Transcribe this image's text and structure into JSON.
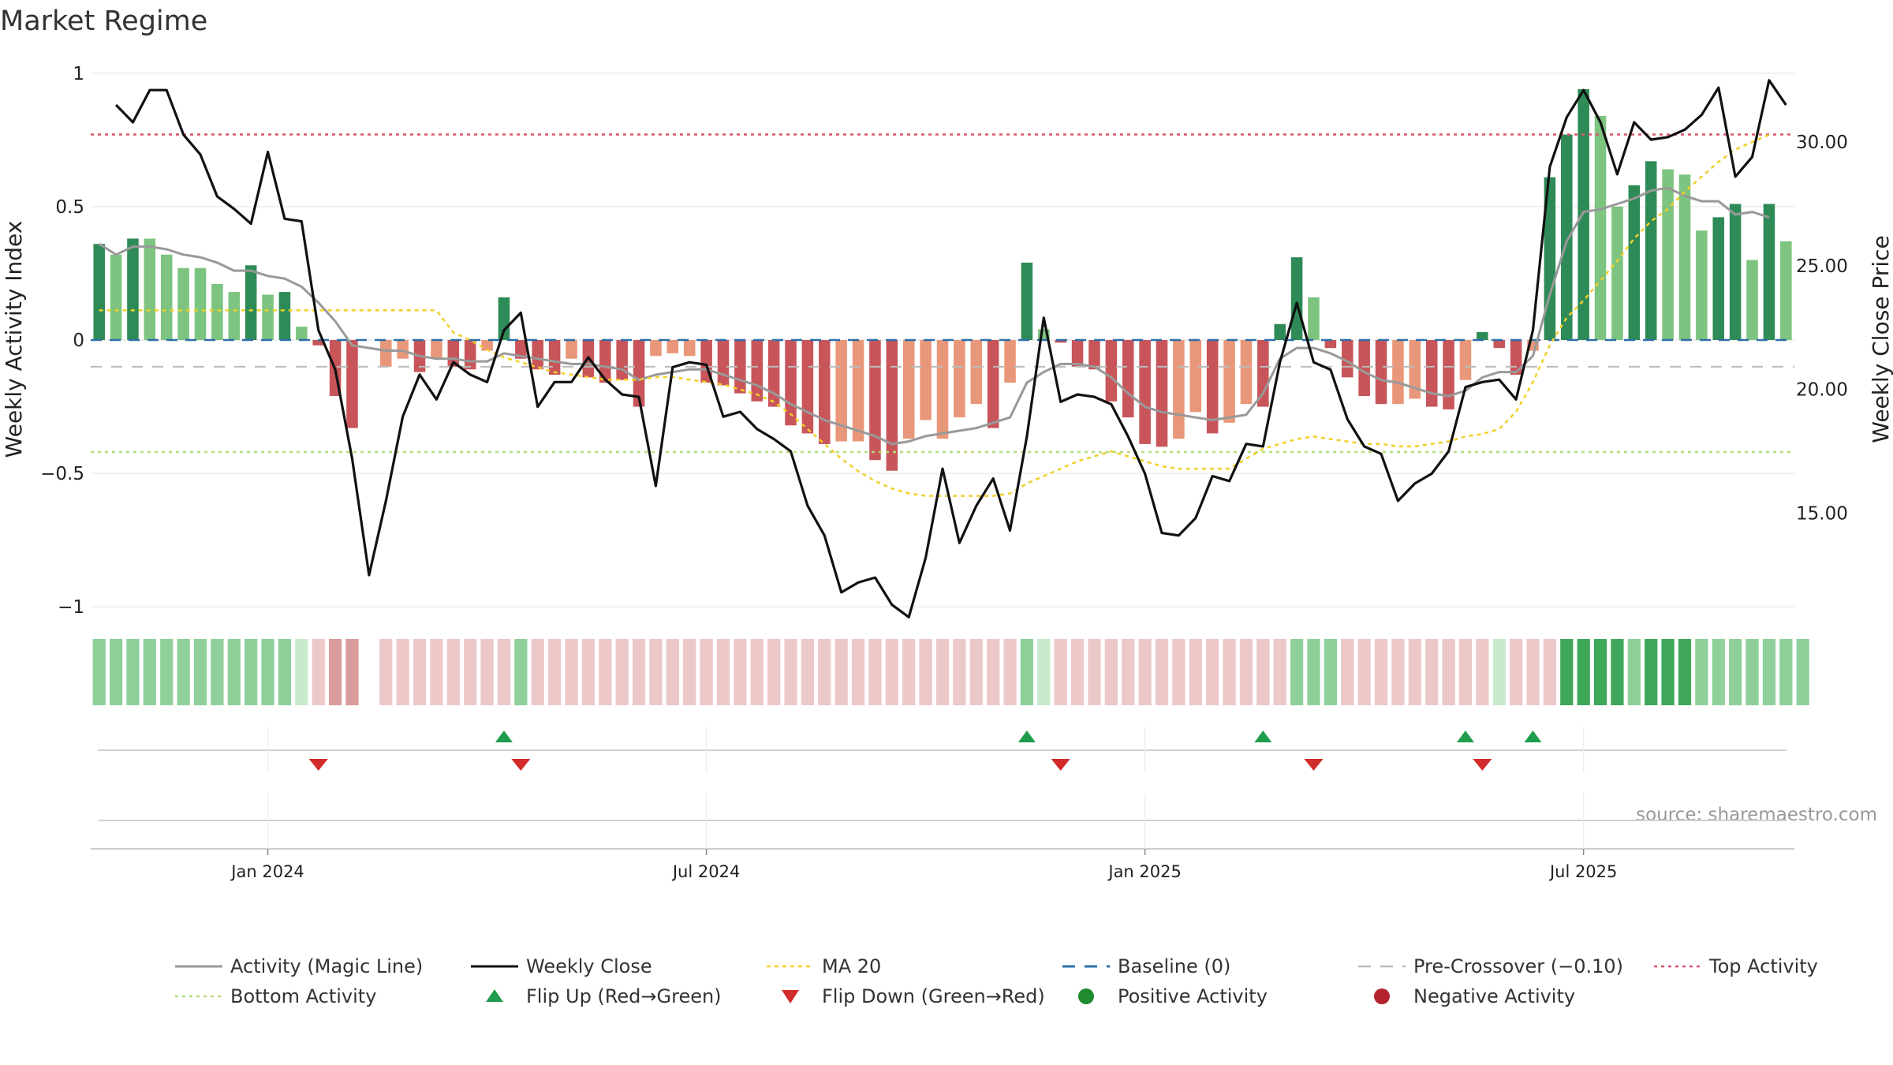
{
  "chart_data": {
    "type": "bar",
    "title": "Market Regime",
    "source": "source: sharemaestro.com",
    "ylabel_left": "Weekly Activity Index",
    "ylabel_right": "Weekly Close Price",
    "ylim_left": [
      -1.02,
      1.02
    ],
    "ylim_right": [
      11.0,
      33.0
    ],
    "yticks_left": [
      1,
      0.5,
      0,
      -0.5,
      -1
    ],
    "yticks_left_labels": [
      "1",
      "0.5",
      "0",
      "−0.5",
      "−1"
    ],
    "yticks_right": [
      30,
      25,
      20,
      15
    ],
    "yticks_right_labels": [
      "30.00",
      "25.00",
      "20.00",
      "15.00"
    ],
    "xticks": [
      {
        "label": "Jan 2024",
        "index": 10
      },
      {
        "label": "Jul 2024",
        "index": 36
      },
      {
        "label": "Jan 2025",
        "index": 62
      },
      {
        "label": "Jul 2025",
        "index": 88
      }
    ],
    "thresholds": {
      "top": 0.77,
      "bottom": -0.42,
      "pre_crossover": -0.1,
      "baseline": 0
    },
    "colors": {
      "pos_strong": "#2e8b57",
      "pos_light": "#7cc47f",
      "neg_strong": "#c8555a",
      "neg_light": "#e9977a",
      "close": "#111111",
      "magic": "#999999",
      "ma": "#f0d028",
      "top": "#d9546a",
      "bottom": "#b6dd7a",
      "pre": "#bbbbbb",
      "base": "#2f6fa8",
      "flip_up": "#1f9d4c",
      "flip_down": "#d22b2b"
    },
    "series": [
      {
        "name": "Activity",
        "values": [
          0.36,
          0.32,
          0.38,
          0.38,
          0.32,
          0.27,
          0.27,
          0.21,
          0.18,
          0.28,
          0.17,
          0.18,
          0.05,
          -0.02,
          -0.21,
          -0.33,
          0,
          -0.1,
          -0.07,
          -0.12,
          -0.07,
          -0.1,
          -0.11,
          -0.04,
          0.16,
          -0.07,
          -0.11,
          -0.13,
          -0.07,
          -0.14,
          -0.16,
          -0.15,
          -0.25,
          -0.06,
          -0.05,
          -0.06,
          -0.16,
          -0.17,
          -0.2,
          -0.23,
          -0.25,
          -0.32,
          -0.35,
          -0.39,
          -0.38,
          -0.38,
          -0.45,
          -0.49,
          -0.37,
          -0.3,
          -0.37,
          -0.29,
          -0.24,
          -0.33,
          -0.16,
          0.29,
          0.04,
          -0.01,
          -0.1,
          -0.11,
          -0.23,
          -0.29,
          -0.39,
          -0.4,
          -0.37,
          -0.27,
          -0.35,
          -0.31,
          -0.24,
          -0.25,
          0.06,
          0.31,
          0.16,
          -0.03,
          -0.14,
          -0.21,
          -0.24,
          -0.24,
          -0.22,
          -0.25,
          -0.26,
          -0.15,
          0.03,
          -0.03,
          -0.13,
          -0.04,
          0.61,
          0.77,
          0.94,
          0.84,
          0.5,
          0.58,
          0.67,
          0.64,
          0.62,
          0.41,
          0.46,
          0.51,
          0.3,
          0.51,
          0.37
        ],
        "colors": [
          "S",
          "L",
          "S",
          "L",
          "L",
          "L",
          "L",
          "L",
          "L",
          "S",
          "L",
          "S",
          "L",
          "S",
          "S",
          "S",
          "N",
          "L",
          "L",
          "S",
          "L",
          "S",
          "S",
          "L",
          "S",
          "S",
          "S",
          "S",
          "L",
          "S",
          "S",
          "S",
          "S",
          "L",
          "L",
          "L",
          "S",
          "S",
          "S",
          "S",
          "S",
          "S",
          "S",
          "S",
          "L",
          "L",
          "S",
          "S",
          "L",
          "L",
          "L",
          "L",
          "L",
          "S",
          "L",
          "S",
          "L",
          "S",
          "S",
          "S",
          "S",
          "S",
          "S",
          "S",
          "L",
          "L",
          "S",
          "L",
          "L",
          "S",
          "S",
          "S",
          "L",
          "S",
          "S",
          "S",
          "S",
          "L",
          "L",
          "S",
          "S",
          "L",
          "S",
          "S",
          "S",
          "L",
          "S",
          "S",
          "S",
          "L",
          "L",
          "S",
          "S",
          "L",
          "L",
          "L",
          "S",
          "S",
          "L",
          "S",
          "L"
        ]
      },
      {
        "name": "Weekly Close",
        "values": [
          31.5,
          30.8,
          32.1,
          32.1,
          30.3,
          29.5,
          27.8,
          27.3,
          26.7,
          29.6,
          26.9,
          26.8,
          22.4,
          20.8,
          17.2,
          12.5,
          15.5,
          18.9,
          20.6,
          19.6,
          21.1,
          20.6,
          20.3,
          22.4,
          23.1,
          19.3,
          20.3,
          20.3,
          21.3,
          20.4,
          19.8,
          19.7,
          16.1,
          20.9,
          21.1,
          21.0,
          18.9,
          19.1,
          18.4,
          18.0,
          17.5,
          15.3,
          14.1,
          11.8,
          12.2,
          12.4,
          11.3,
          10.8,
          13.2,
          16.8,
          13.8,
          15.3,
          16.4,
          14.3,
          18.1,
          22.9,
          19.5,
          19.8,
          19.7,
          19.4,
          18.1,
          16.6,
          14.2,
          14.1,
          14.8,
          16.5,
          16.3,
          17.8,
          17.7,
          21.1,
          23.5,
          21.1,
          20.8,
          18.8,
          17.7,
          17.4,
          15.5,
          16.2,
          16.6,
          17.5,
          20.1,
          20.3,
          20.4,
          19.6,
          22.4,
          29.0,
          31.0,
          32.1,
          30.8,
          28.7,
          30.8,
          30.1,
          30.2,
          30.5,
          31.1,
          32.2,
          28.6,
          29.4,
          32.5,
          31.5
        ],
        "start_index": 1
      },
      {
        "name": "Activity (Magic Line)",
        "values": [
          0.36,
          0.32,
          0.35,
          0.35,
          0.34,
          0.32,
          0.31,
          0.29,
          0.26,
          0.26,
          0.24,
          0.23,
          0.2,
          0.14,
          0.07,
          -0.02,
          -0.03,
          -0.04,
          -0.04,
          -0.06,
          -0.07,
          -0.07,
          -0.08,
          -0.08,
          -0.05,
          -0.06,
          -0.07,
          -0.08,
          -0.09,
          -0.09,
          -0.1,
          -0.11,
          -0.15,
          -0.13,
          -0.12,
          -0.11,
          -0.11,
          -0.13,
          -0.15,
          -0.17,
          -0.2,
          -0.24,
          -0.27,
          -0.3,
          -0.32,
          -0.34,
          -0.36,
          -0.39,
          -0.38,
          -0.36,
          -0.35,
          -0.34,
          -0.33,
          -0.31,
          -0.29,
          -0.16,
          -0.12,
          -0.09,
          -0.09,
          -0.1,
          -0.14,
          -0.2,
          -0.25,
          -0.27,
          -0.28,
          -0.29,
          -0.3,
          -0.29,
          -0.28,
          -0.2,
          -0.07,
          -0.03,
          -0.03,
          -0.05,
          -0.08,
          -0.12,
          -0.15,
          -0.16,
          -0.18,
          -0.2,
          -0.21,
          -0.19,
          -0.14,
          -0.12,
          -0.12,
          -0.06,
          0.17,
          0.37,
          0.48,
          0.49,
          0.51,
          0.53,
          0.56,
          0.57,
          0.54,
          0.52,
          0.52,
          0.47,
          0.48,
          0.46
        ]
      },
      {
        "name": "MA 20",
        "values": [
          23.2,
          23.2,
          23.2,
          23.2,
          23.2,
          23.2,
          23.2,
          23.2,
          23.2,
          23.2,
          23.2,
          23.2,
          23.2,
          23.2,
          23.2,
          23.2,
          23.2,
          23.2,
          23.2,
          23.2,
          23.2,
          22.3,
          22.0,
          21.6,
          21.3,
          21.1,
          20.9,
          20.7,
          20.6,
          20.5,
          20.4,
          20.4,
          20.4,
          20.5,
          20.5,
          20.4,
          20.3,
          20.2,
          20.0,
          19.8,
          19.5,
          19.0,
          18.4,
          17.8,
          17.2,
          16.7,
          16.3,
          16.0,
          15.8,
          15.7,
          15.7,
          15.7,
          15.7,
          15.7,
          15.8,
          16.2,
          16.5,
          16.8,
          17.1,
          17.3,
          17.5,
          17.3,
          17.1,
          16.9,
          16.8,
          16.8,
          16.8,
          16.8,
          17.2,
          17.6,
          17.8,
          18.0,
          18.1,
          18.0,
          17.9,
          17.8,
          17.8,
          17.7,
          17.7,
          17.8,
          17.9,
          18.1,
          18.2,
          18.4,
          19.1,
          20.3,
          21.8,
          22.9,
          23.6,
          24.4,
          25.2,
          26.1,
          26.8,
          27.3,
          28.0,
          28.6,
          29.2,
          29.7,
          30.0,
          30.3
        ]
      }
    ],
    "regime_strip": [
      2,
      2,
      2,
      2,
      2,
      2,
      2,
      2,
      2,
      2,
      2,
      2,
      1,
      -1,
      -2,
      -2,
      0,
      -1,
      -1,
      -1,
      -1,
      -1,
      -1,
      -1,
      -1,
      2,
      -1,
      -1,
      -1,
      -1,
      -1,
      -1,
      -1,
      -1,
      -1,
      -1,
      -1,
      -1,
      -1,
      -1,
      -1,
      -1,
      -1,
      -1,
      -1,
      -1,
      -1,
      -1,
      -1,
      -1,
      -1,
      -1,
      -1,
      -1,
      -1,
      2,
      1,
      -1,
      -1,
      -1,
      -1,
      -1,
      -1,
      -1,
      -1,
      -1,
      -1,
      -1,
      -1,
      -1,
      -1,
      2,
      2,
      2,
      -1,
      -1,
      -1,
      -1,
      -1,
      -1,
      -1,
      -1,
      -1,
      1,
      -1,
      -1,
      -1,
      3,
      3,
      3,
      3,
      2,
      3,
      3,
      3,
      2,
      2,
      2,
      2,
      2,
      2,
      2
    ],
    "flip_up": [
      24,
      55,
      69,
      81,
      85
    ],
    "flip_down": [
      13,
      25,
      57,
      72,
      82
    ],
    "legend": [
      {
        "label": "Activity (Magic Line)",
        "style": "magic"
      },
      {
        "label": "Weekly Close",
        "style": "close"
      },
      {
        "label": "MA 20",
        "style": "ma"
      },
      {
        "label": "Baseline (0)",
        "style": "base"
      },
      {
        "label": "Pre-Crossover (−0.10)",
        "style": "pre"
      },
      {
        "label": "Top Activity",
        "style": "top"
      },
      {
        "label": "Bottom Activity",
        "style": "bottom"
      },
      {
        "label": "Flip Up (Red→Green)",
        "style": "up"
      },
      {
        "label": "Flip Down (Green→Red)",
        "style": "down"
      },
      {
        "label": "Positive Activity",
        "style": "pos"
      },
      {
        "label": "Negative Activity",
        "style": "neg"
      }
    ]
  }
}
